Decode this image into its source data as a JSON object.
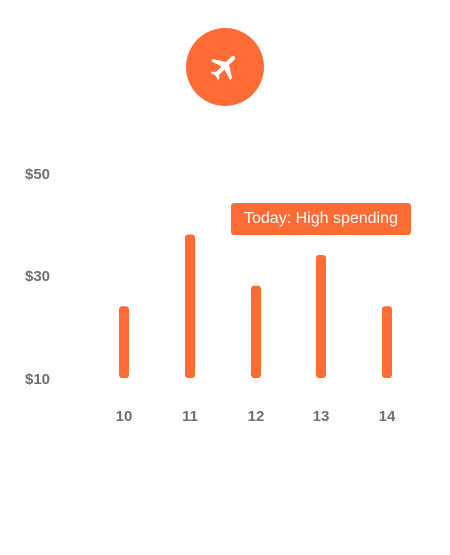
{
  "category": {
    "icon": "airplane-icon",
    "color": "#ff6b35"
  },
  "tooltip": {
    "text": "Today: High spending"
  },
  "chart_data": {
    "type": "bar",
    "categories": [
      "10",
      "11",
      "12",
      "13",
      "14"
    ],
    "values": [
      24,
      38,
      28,
      34,
      24
    ],
    "yticks": [
      "$10",
      "$30",
      "$50"
    ],
    "ylim": [
      10,
      50
    ],
    "grid": false,
    "bar_color": "#ff6b35"
  }
}
